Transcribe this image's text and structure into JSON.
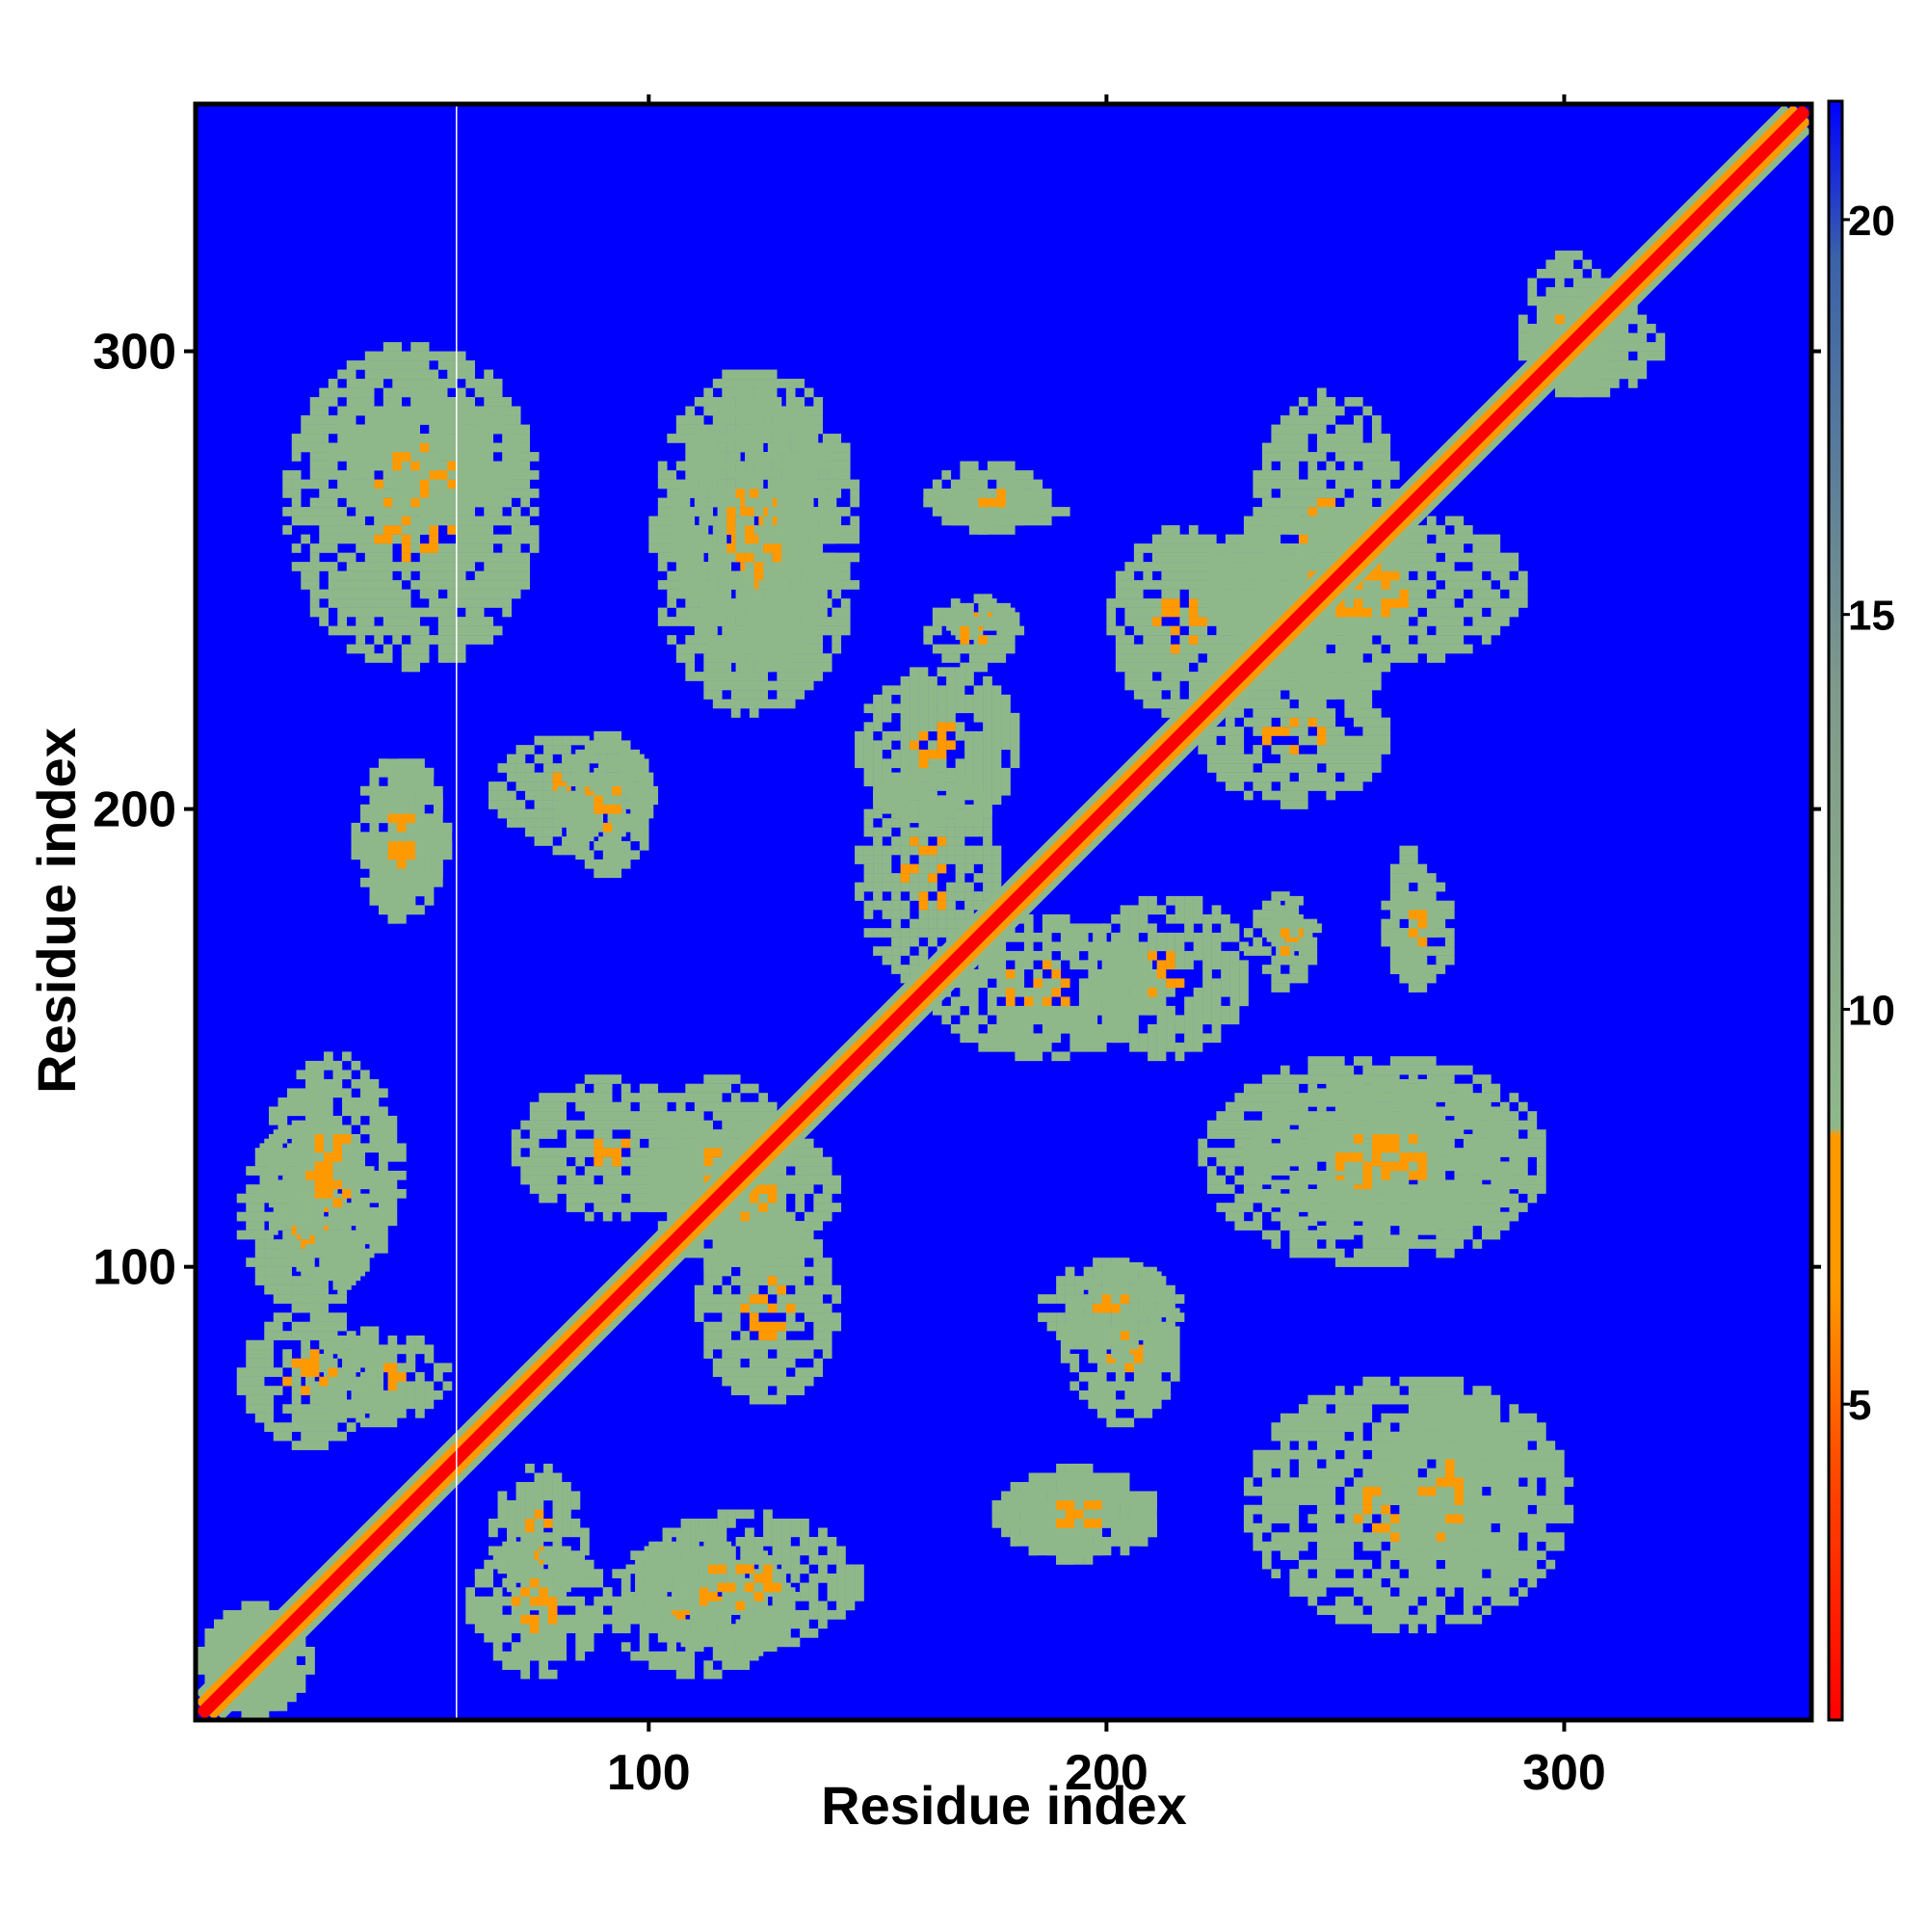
{
  "chart_data": {
    "type": "heatmap",
    "title": "",
    "xlabel": "Residue index",
    "ylabel": "Residue index",
    "xlim": [
      1,
      354
    ],
    "ylim": [
      1,
      354
    ],
    "x_ticks": [
      100,
      200,
      300
    ],
    "y_ticks": [
      100,
      200,
      300
    ],
    "colorbar": {
      "range": [
        1,
        21.5
      ],
      "ticks": [
        5,
        10,
        15,
        20
      ],
      "colors": {
        "near": "#ff0000",
        "mid": "#ff9900",
        "far_contact": "#8fb88a",
        "background": "#0000ff"
      }
    },
    "diagonal": {
      "from": 1,
      "to": 354
    },
    "contact_regions": [
      {
        "x": [
          1,
          25
        ],
        "y": [
          1,
          25
        ],
        "distance": 5
      },
      {
        "x": [
          25,
          55
        ],
        "y": [
          65,
          85
        ],
        "distance": 8
      },
      {
        "x": [
          10,
          40
        ],
        "y": [
          90,
          130
        ],
        "distance": 9
      },
      {
        "x": [
          60,
          90
        ],
        "y": [
          10,
          40
        ],
        "distance": 7
      },
      {
        "x": [
          95,
          145
        ],
        "y": [
          15,
          45
        ],
        "distance": 8
      },
      {
        "x": [
          100,
          130
        ],
        "y": [
          100,
          140
        ],
        "distance": 7
      },
      {
        "x": [
          110,
          140
        ],
        "y": [
          70,
          110
        ],
        "distance": 8
      },
      {
        "x": [
          20,
          75
        ],
        "y": [
          230,
          300
        ],
        "distance": 9
      },
      {
        "x": [
          35,
          55
        ],
        "y": [
          175,
          210
        ],
        "distance": 9
      },
      {
        "x": [
          65,
          100
        ],
        "y": [
          190,
          215
        ],
        "distance": 8
      },
      {
        "x": [
          100,
          145
        ],
        "y": [
          220,
          295
        ],
        "distance": 8
      },
      {
        "x": [
          145,
          175
        ],
        "y": [
          160,
          210
        ],
        "distance": 8
      },
      {
        "x": [
          160,
          190
        ],
        "y": [
          260,
          270
        ],
        "distance": 8
      },
      {
        "x": [
          165,
          180
        ],
        "y": [
          235,
          245
        ],
        "distance": 8
      },
      {
        "x": [
          200,
          230
        ],
        "y": [
          220,
          260
        ],
        "distance": 8
      },
      {
        "x": [
          230,
          265
        ],
        "y": [
          220,
          290
        ],
        "distance": 8
      },
      {
        "x": [
          195,
          230
        ],
        "y": [
          145,
          180
        ],
        "distance": 8
      },
      {
        "x": [
          230,
          290
        ],
        "y": [
          105,
          140
        ],
        "distance": 8
      },
      {
        "x": [
          185,
          215
        ],
        "y": [
          80,
          100
        ],
        "distance": 8
      },
      {
        "x": [
          175,
          210
        ],
        "y": [
          35,
          55
        ],
        "distance": 8
      },
      {
        "x": [
          260,
          290
        ],
        "y": [
          30,
          70
        ],
        "distance": 8
      },
      {
        "x": [
          230,
          245
        ],
        "y": [
          160,
          180
        ],
        "distance": 9
      },
      {
        "x": [
          260,
          275
        ],
        "y": [
          160,
          185
        ],
        "distance": 9
      },
      {
        "x": [
          290,
          320
        ],
        "y": [
          290,
          310
        ],
        "distance": 9
      }
    ]
  }
}
